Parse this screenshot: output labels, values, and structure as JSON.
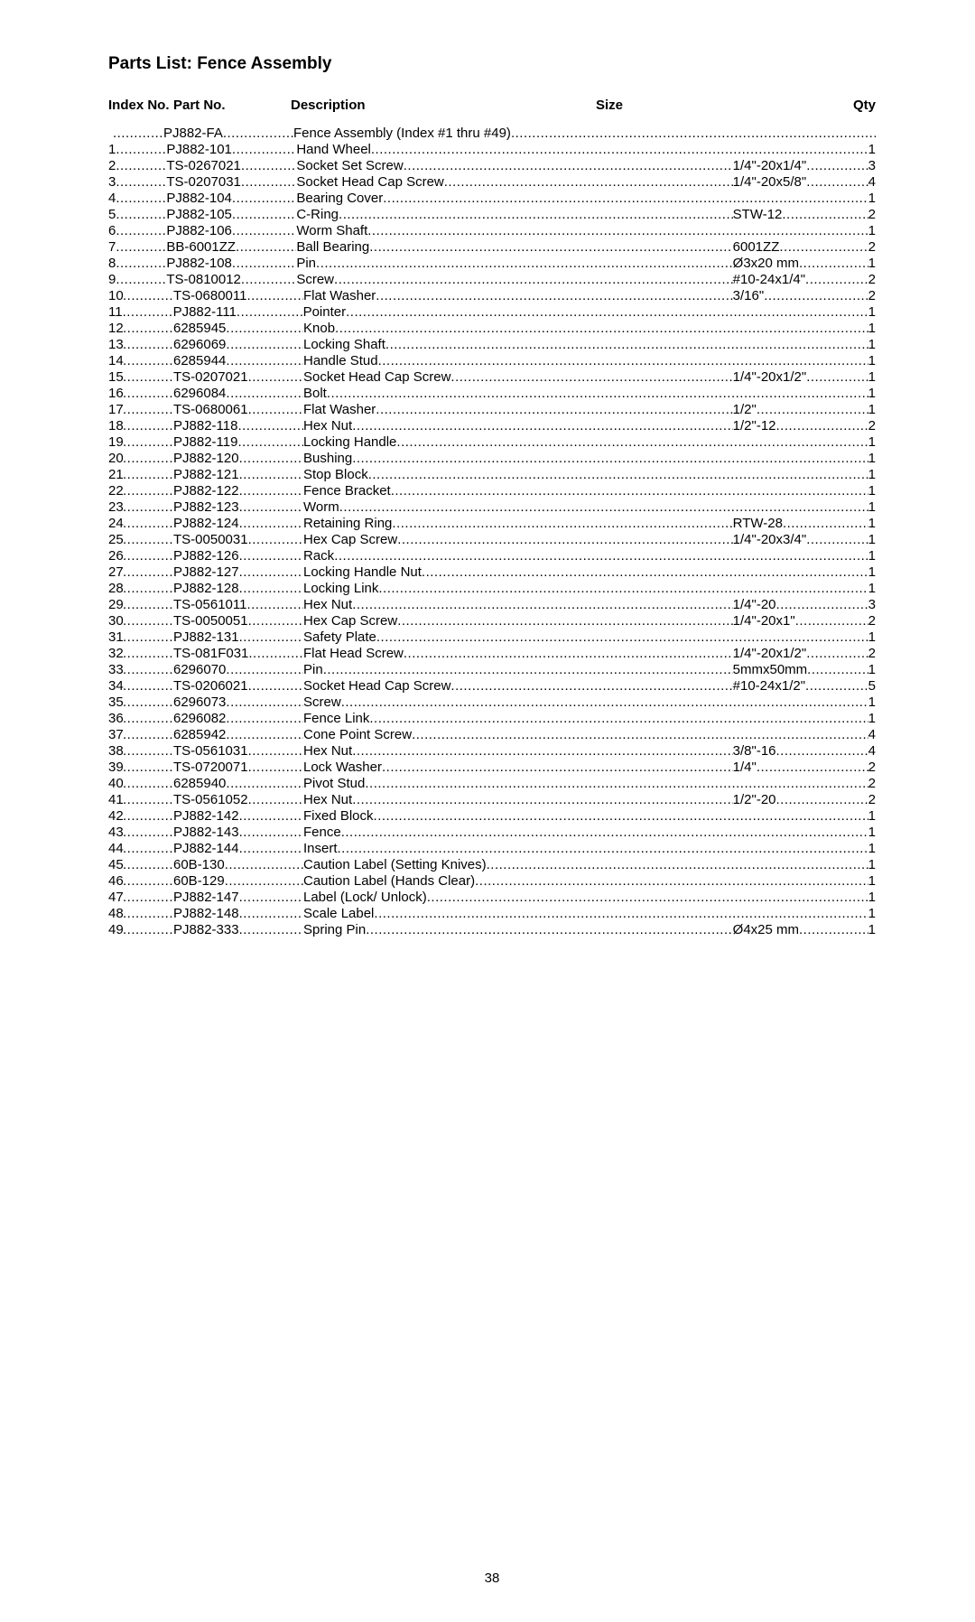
{
  "title": "Parts List: Fence Assembly",
  "headers": {
    "index": "Index No.",
    "part": "Part No.",
    "description": "Description",
    "size": "Size",
    "qty": "Qty"
  },
  "page_number": "38",
  "columns": {
    "gap_idx_part": 56,
    "part_width": 88,
    "gap_part_desc": 56,
    "desc_min_width": 40,
    "gap_desc_size": 0,
    "size_width": 90,
    "gap_size_qty": 0
  },
  "rows": [
    {
      "index": "",
      "part": "PJ882-FA",
      "description": "Fence Assembly (Index #1 thru #49)",
      "size": "",
      "qty": ""
    },
    {
      "index": "1",
      "part": "PJ882-101",
      "description": "Hand Wheel",
      "size": "",
      "qty": "1"
    },
    {
      "index": "2",
      "part": "TS-0267021",
      "description": "Socket Set Screw",
      "size": "1/4\"-20x1/4\"",
      "qty": "3"
    },
    {
      "index": "3",
      "part": "TS-0207031",
      "description": "Socket Head Cap Screw",
      "size": "1/4\"-20x5/8\"",
      "qty": "4"
    },
    {
      "index": "4",
      "part": "PJ882-104",
      "description": "Bearing Cover",
      "size": "",
      "qty": "1"
    },
    {
      "index": "5",
      "part": "PJ882-105",
      "description": "C-Ring",
      "size": "STW-12",
      "qty": "2"
    },
    {
      "index": "6",
      "part": "PJ882-106",
      "description": "Worm Shaft",
      "size": "",
      "qty": "1"
    },
    {
      "index": "7",
      "part": "BB-6001ZZ",
      "description": "Ball Bearing",
      "size": "6001ZZ",
      "qty": "2"
    },
    {
      "index": "8",
      "part": "PJ882-108",
      "description": "Pin",
      "size": "Ø3x20 mm",
      "qty": "1"
    },
    {
      "index": "9",
      "part": "TS-0810012",
      "description": "Screw",
      "size": "#10-24x1/4\"",
      "qty": "2"
    },
    {
      "index": "10",
      "part": "TS-0680011",
      "description": "Flat Washer",
      "size": "3/16\"",
      "qty": "2"
    },
    {
      "index": "11",
      "part": "PJ882-111",
      "description": "Pointer",
      "size": "",
      "qty": "1"
    },
    {
      "index": "12",
      "part": "6285945",
      "description": "Knob",
      "size": "",
      "qty": "1"
    },
    {
      "index": "13",
      "part": "6296069",
      "description": "Locking Shaft",
      "size": "",
      "qty": "1"
    },
    {
      "index": "14",
      "part": "6285944",
      "description": "Handle Stud",
      "size": "",
      "qty": "1"
    },
    {
      "index": "15",
      "part": "TS-0207021",
      "description": "Socket Head Cap Screw",
      "size": "1/4\"-20x1/2\"",
      "qty": "1"
    },
    {
      "index": "16",
      "part": "6296084",
      "description": "Bolt",
      "size": "",
      "qty": "1"
    },
    {
      "index": "17",
      "part": "TS-0680061",
      "description": "Flat Washer",
      "size": "1/2\"",
      "qty": "1"
    },
    {
      "index": "18",
      "part": "PJ882-118",
      "description": "Hex Nut",
      "size": "1/2\"-12",
      "qty": "2"
    },
    {
      "index": "19",
      "part": "PJ882-119",
      "description": "Locking Handle",
      "size": "",
      "qty": "1"
    },
    {
      "index": "20",
      "part": "PJ882-120",
      "description": "Bushing",
      "size": "",
      "qty": "1"
    },
    {
      "index": "21",
      "part": "PJ882-121",
      "description": "Stop Block",
      "size": "",
      "qty": "1"
    },
    {
      "index": "22",
      "part": "PJ882-122",
      "description": "Fence Bracket",
      "size": "",
      "qty": "1"
    },
    {
      "index": "23",
      "part": "PJ882-123",
      "description": "Worm",
      "size": "",
      "qty": "1"
    },
    {
      "index": "24",
      "part": "PJ882-124",
      "description": "Retaining Ring",
      "size": "RTW-28",
      "qty": "1"
    },
    {
      "index": "25",
      "part": "TS-0050031",
      "description": "Hex Cap Screw",
      "size": "1/4\"-20x3/4\"",
      "qty": "1"
    },
    {
      "index": "26",
      "part": "PJ882-126",
      "description": "Rack",
      "size": "",
      "qty": "1"
    },
    {
      "index": "27",
      "part": "PJ882-127",
      "description": "Locking Handle Nut",
      "size": "",
      "qty": "1"
    },
    {
      "index": "28",
      "part": "PJ882-128",
      "description": "Locking Link",
      "size": "",
      "qty": "1"
    },
    {
      "index": "29",
      "part": "TS-0561011",
      "description": "Hex Nut",
      "size": "1/4\"-20",
      "qty": "3"
    },
    {
      "index": "30",
      "part": "TS-0050051",
      "description": "Hex Cap Screw",
      "size": "1/4\"-20x1\"",
      "qty": "2"
    },
    {
      "index": "31",
      "part": "PJ882-131",
      "description": "Safety Plate",
      "size": "",
      "qty": "1"
    },
    {
      "index": "32",
      "part": "TS-081F031",
      "description": "Flat Head Screw",
      "size": "1/4\"-20x1/2\"",
      "qty": "2"
    },
    {
      "index": "33",
      "part": "6296070",
      "description": "Pin",
      "size": "5mmx50mm",
      "qty": "1"
    },
    {
      "index": "34",
      "part": "TS-0206021",
      "description": "Socket Head Cap Screw",
      "size": "#10-24x1/2\"",
      "qty": "5"
    },
    {
      "index": "35",
      "part": "6296073",
      "description": "Screw",
      "size": "",
      "qty": "1"
    },
    {
      "index": "36",
      "part": "6296082",
      "description": "Fence Link",
      "size": "",
      "qty": "1"
    },
    {
      "index": "37",
      "part": "6285942",
      "description": "Cone Point Screw",
      "size": "",
      "qty": "4"
    },
    {
      "index": "38",
      "part": "TS-0561031",
      "description": "Hex Nut",
      "size": "3/8\"-16",
      "qty": "4"
    },
    {
      "index": "39",
      "part": "TS-0720071",
      "description": "Lock Washer",
      "size": "1/4\"",
      "qty": "2"
    },
    {
      "index": "40",
      "part": "6285940",
      "description": "Pivot Stud",
      "size": "",
      "qty": "2"
    },
    {
      "index": "41",
      "part": "TS-0561052",
      "description": "Hex Nut",
      "size": "1/2\"-20",
      "qty": "2"
    },
    {
      "index": "42",
      "part": "PJ882-142",
      "description": "Fixed Block",
      "size": "",
      "qty": "1"
    },
    {
      "index": "43",
      "part": "PJ882-143",
      "description": "Fence",
      "size": "",
      "qty": "1"
    },
    {
      "index": "44",
      "part": "PJ882-144",
      "description": "Insert",
      "size": "",
      "qty": "1"
    },
    {
      "index": "45",
      "part": "60B-130",
      "description": "Caution Label (Setting Knives)",
      "size": "",
      "qty": "1"
    },
    {
      "index": "46",
      "part": "60B-129",
      "description": "Caution Label (Hands Clear)",
      "size": "",
      "qty": "1"
    },
    {
      "index": "47",
      "part": "PJ882-147",
      "description": "Label (Lock/ Unlock)",
      "size": "",
      "qty": "1"
    },
    {
      "index": "48",
      "part": "PJ882-148",
      "description": "Scale Label",
      "size": "",
      "qty": "1"
    },
    {
      "index": "49",
      "part": "PJ882-333",
      "description": "Spring Pin",
      "size": "Ø4x25 mm",
      "qty": "1"
    }
  ]
}
